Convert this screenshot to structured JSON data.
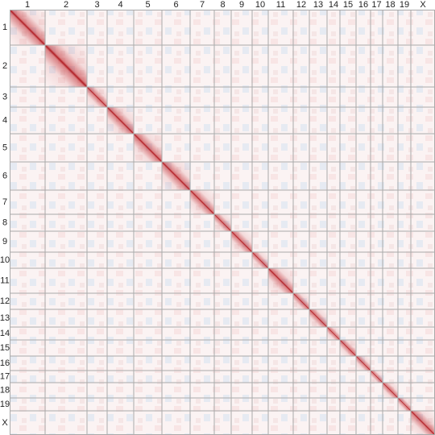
{
  "chart_data": {
    "type": "heatmap",
    "categories": [
      "1",
      "2",
      "3",
      "4",
      "5",
      "6",
      "7",
      "8",
      "9",
      "10",
      "11",
      "12",
      "13",
      "14",
      "15",
      "16",
      "17",
      "18",
      "19",
      "X"
    ],
    "values": [
      44,
      52,
      25,
      33,
      35,
      35,
      30,
      21,
      26,
      20,
      31,
      20,
      22,
      16,
      20,
      18,
      15,
      19,
      16,
      30
    ],
    "color": "#c0282d"
  }
}
